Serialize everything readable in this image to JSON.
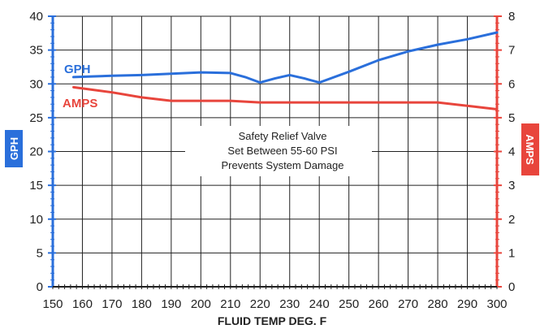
{
  "chart_data": {
    "type": "line",
    "xlabel": "FLUID TEMP DEG. F",
    "x_ticks": [
      150,
      160,
      170,
      180,
      190,
      200,
      210,
      220,
      230,
      240,
      250,
      260,
      270,
      280,
      290,
      300
    ],
    "xlim": [
      150,
      300
    ],
    "left_axis": {
      "label": "GPH",
      "ylim": [
        0,
        40
      ],
      "ticks": [
        0,
        5,
        10,
        15,
        20,
        25,
        30,
        35,
        40
      ],
      "color": "#2a6fdb"
    },
    "right_axis": {
      "label": "AMPS",
      "ylim": [
        0,
        8
      ],
      "ticks": [
        0,
        1,
        2,
        3,
        4,
        5,
        6,
        7,
        8
      ],
      "color": "#e8453c"
    },
    "grid": true,
    "series": [
      {
        "name": "GPH",
        "axis": "left",
        "color": "#2a6fdb",
        "x": [
          157,
          170,
          180,
          190,
          200,
          210,
          215,
          220,
          225,
          230,
          235,
          240,
          250,
          260,
          270,
          280,
          290,
          300
        ],
        "values": [
          31,
          31.2,
          31.3,
          31.5,
          31.7,
          31.6,
          31.0,
          30.2,
          30.8,
          31.3,
          30.8,
          30.2,
          31.8,
          33.5,
          34.8,
          35.8,
          36.6,
          37.6
        ]
      },
      {
        "name": "AMPS",
        "axis": "right",
        "color": "#e8453c",
        "x": [
          157,
          170,
          180,
          190,
          200,
          210,
          220,
          230,
          240,
          250,
          260,
          270,
          280,
          290,
          300
        ],
        "values": [
          5.9,
          5.75,
          5.6,
          5.5,
          5.5,
          5.5,
          5.45,
          5.45,
          5.45,
          5.45,
          5.45,
          5.45,
          5.45,
          5.35,
          5.25
        ]
      }
    ],
    "annotation": [
      "Safety Relief Valve",
      "Set Between 55-60 PSI",
      "Prevents System Damage"
    ]
  }
}
